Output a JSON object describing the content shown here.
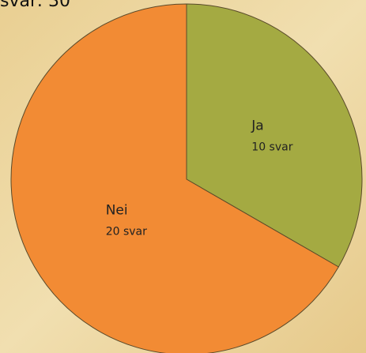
{
  "chart_data": {
    "type": "pie",
    "title": "svar: 30",
    "categories": [
      "Ja",
      "Nei"
    ],
    "values": [
      10,
      20
    ],
    "value_labels": [
      "10 svar",
      "20 svar"
    ],
    "colors": [
      "#a4aa42",
      "#f28b34"
    ]
  }
}
